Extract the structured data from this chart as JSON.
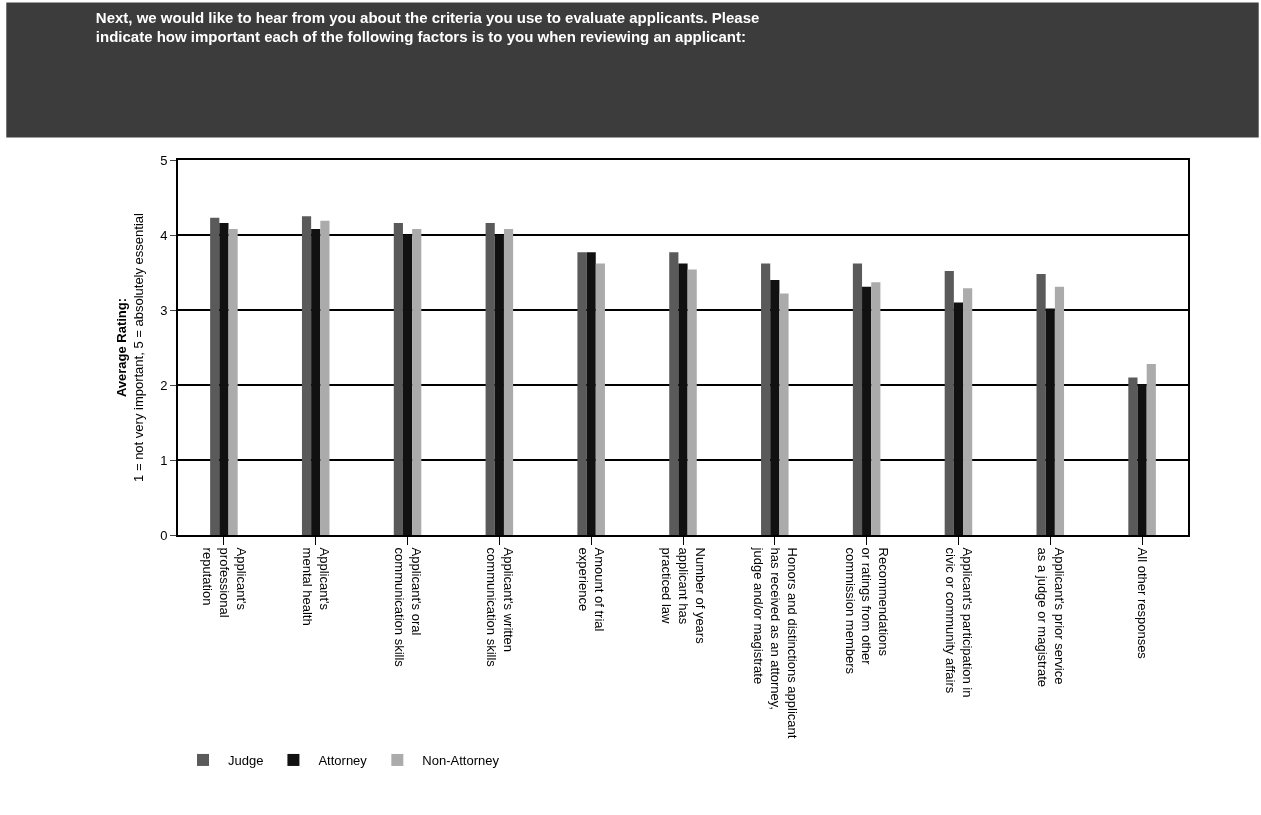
{
  "chart_data": {
    "type": "bar",
    "title": "Next, we would like to hear from you about the criteria you use to evaluate applicants. Please\nindicate how important each of the following factors is to you when reviewing an applicant:",
    "ylabel": "Average Rating:\n1 = not very important, 5 = absolutely essential",
    "categories": [
      "Applicant's\nprofessional\nreputation",
      "Applicant's\nmental health",
      "Applicant's oral\ncommunication skills",
      "Applicant's written\ncommunication skills",
      "Amount of trial\nexperience",
      "Number of years\napplicant has\npracticed law",
      "Honors and distinctions applicant\nhas received as an attorney,\njudge and/or magistrate",
      "Recommendations\nor ratings from other\ncommission members",
      "Applicant's participation in\ncivic or community affairs",
      "Applicant's prior service\nas a judge or magistrate",
      "All other responses"
    ],
    "series": [
      {
        "name": "Judge",
        "color": "#5a5a5a",
        "values": [
          4.23,
          4.25,
          4.16,
          4.16,
          3.77,
          3.77,
          3.62,
          3.62,
          3.52,
          3.48,
          2.1
        ]
      },
      {
        "name": "Attorney",
        "color": "#111111",
        "values": [
          4.16,
          4.08,
          4.0,
          4.0,
          3.77,
          3.62,
          3.4,
          3.31,
          3.1,
          3.02,
          2.01
        ]
      },
      {
        "name": "Non-Attorney",
        "color": "#ababab",
        "values": [
          4.08,
          4.19,
          4.08,
          4.08,
          3.62,
          3.54,
          3.22,
          3.37,
          3.29,
          3.31,
          2.28
        ]
      }
    ],
    "ylim": [
      0,
      5
    ],
    "yticks": [
      0,
      1,
      2,
      3,
      4,
      5
    ],
    "grid": "y",
    "legend": "bottom left"
  }
}
